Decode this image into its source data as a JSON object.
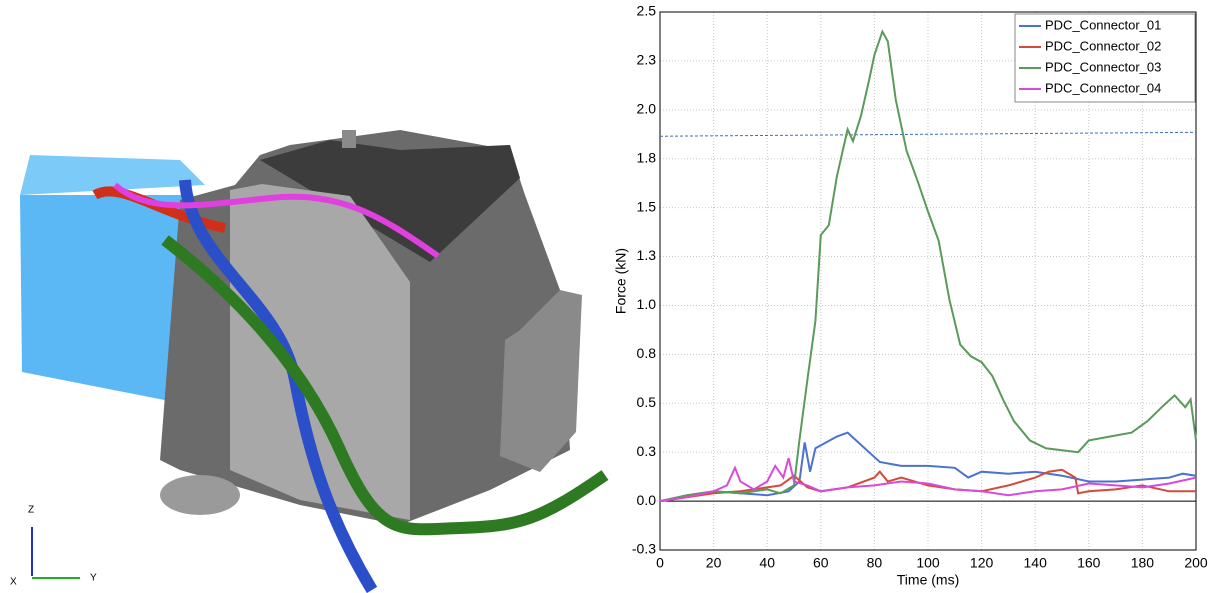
{
  "viewport": {
    "axis_labels": [
      "Z",
      "Y",
      "X"
    ]
  },
  "chart_data": {
    "type": "line",
    "xlabel": "Time (ms)",
    "ylabel": "Force (kN)",
    "xlim": [
      0,
      200
    ],
    "xticks": [
      0,
      20,
      40,
      60,
      80,
      100,
      120,
      140,
      160,
      180,
      200
    ],
    "ylim": [
      -0.25,
      2.5
    ],
    "yticks": [
      {
        "value": -0.25,
        "label": "-0.3"
      },
      {
        "value": 0,
        "label": "0.0"
      },
      {
        "value": 0.25,
        "label": "0.3"
      },
      {
        "value": 0.5,
        "label": "0.5"
      },
      {
        "value": 0.75,
        "label": "0.8"
      },
      {
        "value": 1.0,
        "label": "1.0"
      },
      {
        "value": 1.25,
        "label": "1.3"
      },
      {
        "value": 1.5,
        "label": "1.5"
      },
      {
        "value": 1.75,
        "label": "1.8"
      },
      {
        "value": 2.0,
        "label": "2.0"
      },
      {
        "value": 2.25,
        "label": "2.3"
      },
      {
        "value": 2.5,
        "label": "2.5"
      }
    ],
    "grid": true,
    "legend": "top-right",
    "reference_line": {
      "x": [
        0,
        200
      ],
      "values": [
        1.865,
        1.885
      ],
      "color": "#3a6fc0",
      "style": "dashed"
    },
    "series": [
      {
        "name": "PDC_Connector_01",
        "color": "#4a72d0",
        "x": [
          0,
          10,
          20,
          30,
          40,
          48,
          52,
          54,
          56,
          58,
          62,
          66,
          70,
          74,
          78,
          82,
          90,
          100,
          110,
          115,
          120,
          130,
          140,
          150,
          160,
          170,
          180,
          190,
          195,
          200
        ],
        "values": [
          0,
          0.02,
          0.05,
          0.04,
          0.03,
          0.05,
          0.1,
          0.3,
          0.15,
          0.27,
          0.3,
          0.33,
          0.35,
          0.3,
          0.25,
          0.2,
          0.18,
          0.18,
          0.17,
          0.12,
          0.15,
          0.14,
          0.15,
          0.13,
          0.1,
          0.1,
          0.11,
          0.12,
          0.14,
          0.13
        ]
      },
      {
        "name": "PDC_Connector_02",
        "color": "#d44a3a",
        "x": [
          0,
          10,
          20,
          30,
          40,
          45,
          50,
          55,
          60,
          70,
          80,
          82,
          85,
          90,
          100,
          110,
          120,
          130,
          140,
          145,
          150,
          155,
          156,
          160,
          170,
          180,
          190,
          200
        ],
        "values": [
          0,
          0.02,
          0.04,
          0.05,
          0.07,
          0.08,
          0.13,
          0.07,
          0.05,
          0.07,
          0.12,
          0.15,
          0.1,
          0.12,
          0.08,
          0.06,
          0.05,
          0.08,
          0.12,
          0.15,
          0.16,
          0.12,
          0.04,
          0.05,
          0.06,
          0.08,
          0.05,
          0.05
        ]
      },
      {
        "name": "PDC_Connector_03",
        "color": "#5a9a5a",
        "x": [
          0,
          10,
          20,
          30,
          40,
          45,
          50,
          52,
          55,
          58,
          60,
          63,
          66,
          70,
          72,
          75,
          78,
          80,
          83,
          85,
          88,
          92,
          96,
          100,
          104,
          108,
          112,
          116,
          120,
          124,
          128,
          132,
          138,
          144,
          150,
          156,
          160,
          168,
          176,
          182,
          188,
          192,
          196,
          198,
          200
        ],
        "values": [
          0,
          0.03,
          0.05,
          0.04,
          0.06,
          0.04,
          0.08,
          0.31,
          0.62,
          0.92,
          1.36,
          1.41,
          1.66,
          1.9,
          1.84,
          1.97,
          2.15,
          2.28,
          2.4,
          2.35,
          2.05,
          1.79,
          1.64,
          1.48,
          1.33,
          1.03,
          0.8,
          0.74,
          0.71,
          0.64,
          0.52,
          0.41,
          0.31,
          0.27,
          0.26,
          0.25,
          0.31,
          0.33,
          0.35,
          0.41,
          0.49,
          0.54,
          0.48,
          0.52,
          0.31
        ]
      },
      {
        "name": "PDC_Connector_04",
        "color": "#d84ad8",
        "x": [
          0,
          10,
          20,
          25,
          28,
          30,
          35,
          40,
          43,
          46,
          48,
          50,
          55,
          60,
          70,
          80,
          90,
          100,
          110,
          120,
          130,
          140,
          150,
          160,
          170,
          180,
          190,
          200
        ],
        "values": [
          0,
          0.02,
          0.05,
          0.08,
          0.17,
          0.1,
          0.06,
          0.1,
          0.18,
          0.12,
          0.22,
          0.1,
          0.08,
          0.05,
          0.07,
          0.08,
          0.1,
          0.09,
          0.06,
          0.05,
          0.03,
          0.05,
          0.06,
          0.09,
          0.08,
          0.07,
          0.09,
          0.12
        ]
      }
    ]
  }
}
